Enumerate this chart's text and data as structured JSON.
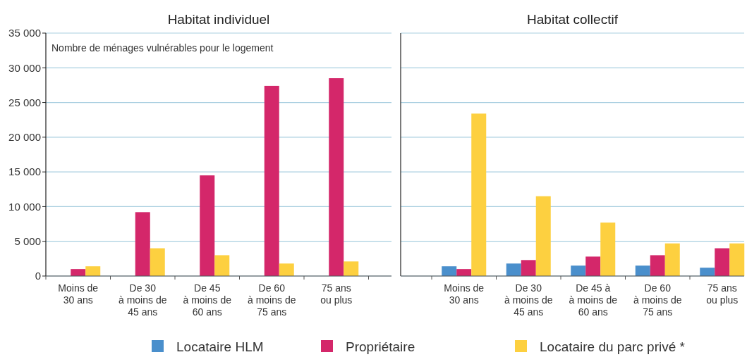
{
  "chart_data": [
    {
      "type": "bar",
      "title": "Habitat individuel",
      "annotations": [
        "Nombre de ménages vulnérables pour le logement"
      ],
      "categories": [
        "Moins de\n30 ans",
        "De 30\nà moins de\n45 ans",
        "De 45\nà moins de\n60 ans",
        "De 60\nà moins de\n75 ans",
        "75 ans\nou plus"
      ],
      "series": [
        {
          "name": "Locataire HLM",
          "color": "#4a8fcc",
          "values": [
            0,
            0,
            0,
            0,
            0
          ]
        },
        {
          "name": "Propriétaire",
          "color": "#d4276a",
          "values": [
            1000,
            9200,
            14500,
            27400,
            28500
          ]
        },
        {
          "name": "Locataire du parc privé *",
          "color": "#fdd040",
          "values": [
            1400,
            4000,
            3000,
            1800,
            2100
          ]
        }
      ],
      "ylim": [
        0,
        35000
      ],
      "yticks": [
        {
          "value": 0,
          "label": "0"
        },
        {
          "value": 5000,
          "label": "5 000"
        },
        {
          "value": 10000,
          "label": "10 000"
        },
        {
          "value": 15000,
          "label": "15 000"
        },
        {
          "value": 20000,
          "label": "20 000"
        },
        {
          "value": 25000,
          "label": "25 000"
        },
        {
          "value": 30000,
          "label": "30 000"
        },
        {
          "value": 35000,
          "label": "35 000"
        }
      ],
      "grid": "y",
      "legend": "bottom"
    },
    {
      "type": "bar",
      "title": "Habitat collectif",
      "categories": [
        "Moins de\n30 ans",
        "De 30\nà moins de\n45 ans",
        "De 45 à\nà moins de\n60 ans",
        "De 60\nà moins de\n75 ans",
        "75 ans\nou plus"
      ],
      "series": [
        {
          "color": "#4a8fcc",
          "values": [
            1400,
            1800,
            1500,
            1500,
            1200
          ]
        },
        {
          "color": "#d4276a",
          "values": [
            1000,
            2300,
            2800,
            3000,
            4000
          ]
        },
        {
          "color": "#fdd040",
          "values": [
            23400,
            11500,
            7700,
            4700,
            4700
          ]
        }
      ],
      "ylim": [
        0,
        35000
      ],
      "yticks": [
        {
          "value": 0,
          "label": null
        },
        {
          "value": 5000,
          "label": null
        },
        {
          "value": 10000,
          "label": null
        },
        {
          "value": 15000,
          "label": null
        },
        {
          "value": 20000,
          "label": null
        },
        {
          "value": 25000,
          "label": null
        },
        {
          "value": 30000,
          "label": null
        },
        {
          "value": 35000,
          "label": null
        }
      ],
      "grid": "y",
      "tick_labels": "x"
    }
  ]
}
